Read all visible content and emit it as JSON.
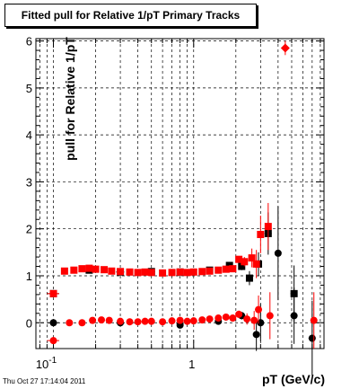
{
  "title": "Fitted pull for Relative 1/pT  Primary Tracks",
  "timestamp": "Thu Oct 27 17:14:04 2011",
  "chart_data": {
    "type": "scatter",
    "title": "Fitted pull for Relative 1/pT  Primary Tracks",
    "xlabel": "pT (GeV/c)",
    "ylabel": "pull for Relative 1/pT",
    "x_scale": "log",
    "xlim": [
      0.075,
      8.5
    ],
    "ylim": [
      -0.55,
      6.05
    ],
    "grid": true,
    "y_ticks": [
      0,
      1,
      2,
      3,
      4,
      5,
      6
    ],
    "x_tick_labels": [
      {
        "value": 0.1,
        "base": "10",
        "exp": "-1"
      },
      {
        "value": 1,
        "base": "1",
        "exp": ""
      }
    ],
    "series": [
      {
        "color": "#000000",
        "points": [
          {
            "x": 0.1,
            "y": 0.62,
            "ex": [
              0.09,
              0.11
            ],
            "ey": 0.02,
            "marker": "square"
          },
          {
            "x": 0.18,
            "y": 1.12,
            "ex": [
              0.17,
              0.19
            ],
            "ey": 0.01,
            "marker": "square"
          },
          {
            "x": 0.3,
            "y": 1.08,
            "ex": [
              0.28,
              0.32
            ],
            "ey": 0.01,
            "marker": "square"
          },
          {
            "x": 0.5,
            "y": 1.09,
            "ex": [
              0.47,
              0.53
            ],
            "ey": 0.01,
            "marker": "square"
          },
          {
            "x": 0.8,
            "y": 1.08,
            "ex": [
              0.76,
              0.84
            ],
            "ey": 0.01,
            "marker": "square"
          },
          {
            "x": 1.3,
            "y": 1.12,
            "ex": [
              1.25,
              1.35
            ],
            "ey": 0.02,
            "marker": "square"
          },
          {
            "x": 1.8,
            "y": 1.22,
            "ex": [
              1.75,
              1.85
            ],
            "ey": 0.04,
            "marker": "square"
          },
          {
            "x": 2.2,
            "y": 1.2,
            "ex": [
              2.15,
              2.25
            ],
            "ey": 0.08,
            "marker": "square"
          },
          {
            "x": 2.5,
            "y": 0.95,
            "ex": [
              2.45,
              2.55
            ],
            "ey": 0.15,
            "marker": "square"
          },
          {
            "x": 2.9,
            "y": 1.25,
            "ex": [
              2.85,
              2.95
            ],
            "ey": 0.25,
            "marker": "square"
          },
          {
            "x": 3.4,
            "y": 1.9,
            "ex": [
              3.2,
              3.6
            ],
            "ey": 0.45,
            "marker": "square"
          },
          {
            "x": 5.2,
            "y": 0.62,
            "ex": [
              4.9,
              5.5
            ],
            "ey": 0.6,
            "marker": "square"
          },
          {
            "x": 0.1,
            "y": 0.0,
            "ex": [
              0.09,
              0.11
            ],
            "ey": 0.02,
            "marker": "circle"
          },
          {
            "x": 0.3,
            "y": 0.0,
            "ex": [
              0.28,
              0.32
            ],
            "ey": 0.01,
            "marker": "circle"
          },
          {
            "x": 0.8,
            "y": -0.05,
            "ex": [
              0.76,
              0.84
            ],
            "ey": 0.01,
            "marker": "circle"
          },
          {
            "x": 1.5,
            "y": 0.03,
            "ex": [
              1.45,
              1.55
            ],
            "ey": 0.02,
            "marker": "circle"
          },
          {
            "x": 2.2,
            "y": 0.15,
            "ex": [
              2.15,
              2.25
            ],
            "ey": 0.08,
            "marker": "circle"
          },
          {
            "x": 2.8,
            "y": -0.25,
            "ex": [
              2.75,
              2.85
            ],
            "ey": 0.35,
            "marker": "circle"
          },
          {
            "x": 3.0,
            "y": 0.0,
            "ex": [
              2.95,
              3.05
            ],
            "ey": 0.4,
            "marker": "circle"
          },
          {
            "x": 4.0,
            "y": 1.48,
            "ex": [
              3.8,
              4.2
            ],
            "ey": 1.0,
            "marker": "circle"
          },
          {
            "x": 5.2,
            "y": 0.15,
            "ex": [
              4.9,
              5.5
            ],
            "ey": 0.6,
            "marker": "circle"
          },
          {
            "x": 7.0,
            "y": -0.33,
            "ex": [
              6.6,
              7.4
            ],
            "ey": 0.8,
            "marker": "circle"
          }
        ]
      },
      {
        "color": "#ff0000",
        "points": [
          {
            "x": 0.1,
            "y": 0.62,
            "ex": [
              0.09,
              0.11
            ],
            "ey": 0.02,
            "marker": "square"
          },
          {
            "x": 0.12,
            "y": 1.1,
            "ex": [
              0.115,
              0.125
            ],
            "ey": 0.01,
            "marker": "square"
          },
          {
            "x": 0.14,
            "y": 1.12,
            "ex": [
              0.135,
              0.145
            ],
            "ey": 0.01,
            "marker": "square"
          },
          {
            "x": 0.16,
            "y": 1.15,
            "ex": [
              0.155,
              0.165
            ],
            "ey": 0.01,
            "marker": "square"
          },
          {
            "x": 0.18,
            "y": 1.16,
            "ex": [
              0.175,
              0.185
            ],
            "ey": 0.01,
            "marker": "square"
          },
          {
            "x": 0.2,
            "y": 1.14,
            "ex": [
              0.195,
              0.205
            ],
            "ey": 0.01,
            "marker": "square"
          },
          {
            "x": 0.23,
            "y": 1.13,
            "ex": [
              0.225,
              0.235
            ],
            "ey": 0.01,
            "marker": "square"
          },
          {
            "x": 0.26,
            "y": 1.1,
            "ex": [
              0.255,
              0.265
            ],
            "ey": 0.01,
            "marker": "square"
          },
          {
            "x": 0.3,
            "y": 1.09,
            "ex": [
              0.29,
              0.31
            ],
            "ey": 0.01,
            "marker": "square"
          },
          {
            "x": 0.35,
            "y": 1.08,
            "ex": [
              0.34,
              0.36
            ],
            "ey": 0.01,
            "marker": "square"
          },
          {
            "x": 0.4,
            "y": 1.07,
            "ex": [
              0.39,
              0.41
            ],
            "ey": 0.01,
            "marker": "square"
          },
          {
            "x": 0.45,
            "y": 1.08,
            "ex": [
              0.44,
              0.46
            ],
            "ey": 0.01,
            "marker": "square"
          },
          {
            "x": 0.5,
            "y": 1.07,
            "ex": [
              0.49,
              0.51
            ],
            "ey": 0.01,
            "marker": "square"
          },
          {
            "x": 0.6,
            "y": 1.06,
            "ex": [
              0.59,
              0.61
            ],
            "ey": 0.01,
            "marker": "square"
          },
          {
            "x": 0.7,
            "y": 1.07,
            "ex": [
              0.69,
              0.71
            ],
            "ey": 0.01,
            "marker": "square"
          },
          {
            "x": 0.8,
            "y": 1.08,
            "ex": [
              0.79,
              0.81
            ],
            "ey": 0.01,
            "marker": "square"
          },
          {
            "x": 0.9,
            "y": 1.07,
            "ex": [
              0.89,
              0.91
            ],
            "ey": 0.01,
            "marker": "square"
          },
          {
            "x": 1.0,
            "y": 1.08,
            "ex": [
              0.98,
              1.02
            ],
            "ey": 0.01,
            "marker": "square"
          },
          {
            "x": 1.15,
            "y": 1.09,
            "ex": [
              1.12,
              1.18
            ],
            "ey": 0.02,
            "marker": "square"
          },
          {
            "x": 1.3,
            "y": 1.1,
            "ex": [
              1.27,
              1.33
            ],
            "ey": 0.02,
            "marker": "square"
          },
          {
            "x": 1.5,
            "y": 1.12,
            "ex": [
              1.47,
              1.53
            ],
            "ey": 0.02,
            "marker": "square"
          },
          {
            "x": 1.7,
            "y": 1.14,
            "ex": [
              1.67,
              1.73
            ],
            "ey": 0.03,
            "marker": "square"
          },
          {
            "x": 1.9,
            "y": 1.15,
            "ex": [
              1.87,
              1.93
            ],
            "ey": 0.04,
            "marker": "square"
          },
          {
            "x": 2.1,
            "y": 1.35,
            "ex": [
              2.07,
              2.13
            ],
            "ey": 0.06,
            "marker": "square"
          },
          {
            "x": 2.3,
            "y": 1.3,
            "ex": [
              2.27,
              2.33
            ],
            "ey": 0.1,
            "marker": "square"
          },
          {
            "x": 2.6,
            "y": 1.38,
            "ex": [
              2.55,
              2.65
            ],
            "ey": 0.2,
            "marker": "square"
          },
          {
            "x": 2.8,
            "y": 1.25,
            "ex": [
              2.75,
              2.85
            ],
            "ey": 0.3,
            "marker": "square"
          },
          {
            "x": 3.0,
            "y": 1.88,
            "ex": [
              2.95,
              3.05
            ],
            "ey": 0.4,
            "marker": "square"
          },
          {
            "x": 3.4,
            "y": 2.05,
            "ex": [
              3.3,
              3.5
            ],
            "ey": 0.5,
            "marker": "square"
          },
          {
            "x": 4.5,
            "y": 5.85,
            "ex": [
              4.3,
              4.7
            ],
            "ey": 0.15,
            "marker": "diamond"
          },
          {
            "x": 0.1,
            "y": -0.38,
            "ex": [
              0.09,
              0.11
            ],
            "ey": 0.02,
            "marker": "circle"
          },
          {
            "x": 0.13,
            "y": 0.0,
            "ex": [
              0.125,
              0.135
            ],
            "ey": 0.01,
            "marker": "circle"
          },
          {
            "x": 0.16,
            "y": 0.0,
            "ex": [
              0.155,
              0.165
            ],
            "ey": 0.01,
            "marker": "circle"
          },
          {
            "x": 0.19,
            "y": 0.05,
            "ex": [
              0.185,
              0.195
            ],
            "ey": 0.01,
            "marker": "circle"
          },
          {
            "x": 0.22,
            "y": 0.06,
            "ex": [
              0.215,
              0.225
            ],
            "ey": 0.01,
            "marker": "circle"
          },
          {
            "x": 0.25,
            "y": 0.05,
            "ex": [
              0.245,
              0.255
            ],
            "ey": 0.01,
            "marker": "circle"
          },
          {
            "x": 0.3,
            "y": 0.03,
            "ex": [
              0.29,
              0.31
            ],
            "ey": 0.01,
            "marker": "circle"
          },
          {
            "x": 0.35,
            "y": 0.02,
            "ex": [
              0.34,
              0.36
            ],
            "ey": 0.01,
            "marker": "circle"
          },
          {
            "x": 0.4,
            "y": 0.02,
            "ex": [
              0.39,
              0.41
            ],
            "ey": 0.01,
            "marker": "circle"
          },
          {
            "x": 0.45,
            "y": 0.03,
            "ex": [
              0.44,
              0.46
            ],
            "ey": 0.01,
            "marker": "circle"
          },
          {
            "x": 0.5,
            "y": 0.03,
            "ex": [
              0.49,
              0.51
            ],
            "ey": 0.01,
            "marker": "circle"
          },
          {
            "x": 0.6,
            "y": 0.02,
            "ex": [
              0.59,
              0.61
            ],
            "ey": 0.01,
            "marker": "circle"
          },
          {
            "x": 0.7,
            "y": 0.04,
            "ex": [
              0.69,
              0.71
            ],
            "ey": 0.01,
            "marker": "circle"
          },
          {
            "x": 0.8,
            "y": 0.05,
            "ex": [
              0.79,
              0.81
            ],
            "ey": 0.01,
            "marker": "circle"
          },
          {
            "x": 0.9,
            "y": 0.03,
            "ex": [
              0.89,
              0.91
            ],
            "ey": 0.01,
            "marker": "circle"
          },
          {
            "x": 1.0,
            "y": 0.04,
            "ex": [
              0.98,
              1.02
            ],
            "ey": 0.02,
            "marker": "circle"
          },
          {
            "x": 1.15,
            "y": 0.06,
            "ex": [
              1.12,
              1.18
            ],
            "ey": 0.02,
            "marker": "circle"
          },
          {
            "x": 1.3,
            "y": 0.08,
            "ex": [
              1.27,
              1.33
            ],
            "ey": 0.02,
            "marker": "circle"
          },
          {
            "x": 1.5,
            "y": 0.1,
            "ex": [
              1.47,
              1.53
            ],
            "ey": 0.03,
            "marker": "circle"
          },
          {
            "x": 1.7,
            "y": 0.12,
            "ex": [
              1.67,
              1.73
            ],
            "ey": 0.04,
            "marker": "circle"
          },
          {
            "x": 1.9,
            "y": 0.1,
            "ex": [
              1.87,
              1.93
            ],
            "ey": 0.05,
            "marker": "circle"
          },
          {
            "x": 2.1,
            "y": 0.18,
            "ex": [
              2.07,
              2.13
            ],
            "ey": 0.08,
            "marker": "circle"
          },
          {
            "x": 2.4,
            "y": 0.08,
            "ex": [
              2.35,
              2.45
            ],
            "ey": 0.12,
            "marker": "circle"
          },
          {
            "x": 2.7,
            "y": 0.05,
            "ex": [
              2.65,
              2.75
            ],
            "ey": 0.2,
            "marker": "circle"
          },
          {
            "x": 2.9,
            "y": 0.28,
            "ex": [
              2.85,
              2.95
            ],
            "ey": 0.3,
            "marker": "circle"
          },
          {
            "x": 3.5,
            "y": 0.15,
            "ex": [
              3.35,
              3.65
            ],
            "ey": 0.5,
            "marker": "circle"
          },
          {
            "x": 7.2,
            "y": 0.05,
            "ex": [
              6.8,
              7.6
            ],
            "ey": 0.6,
            "marker": "circle"
          }
        ]
      }
    ]
  }
}
